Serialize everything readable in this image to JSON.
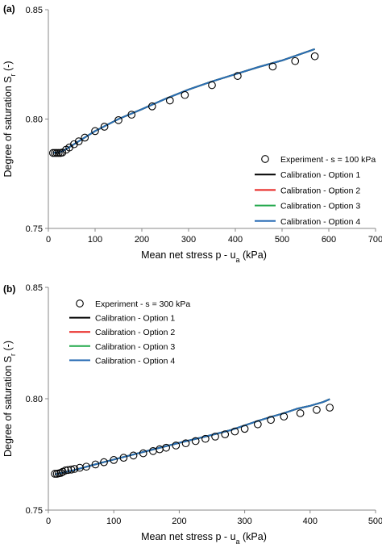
{
  "chart_data": [
    {
      "type": "line",
      "panel_label": "(a)",
      "xlabel": "Mean net stress p - u",
      "xlabel_sub": "a",
      "xlabel_tail": " (kPa)",
      "ylabel": "Degree of saturation S",
      "ylabel_sub": "r",
      "ylabel_tail": " (-)",
      "xlim": [
        0,
        700
      ],
      "ylim": [
        0.75,
        0.85
      ],
      "xticks": [
        "0",
        "100",
        "200",
        "300",
        "400",
        "500",
        "600",
        "700"
      ],
      "yticks": [
        "0.75",
        "0.80",
        "0.85"
      ],
      "grid": false,
      "legend_position": "right",
      "series": [
        {
          "name": "Experiment - s = 100 kPa",
          "kind": "markers",
          "color": "#000000",
          "x": [
            10,
            14,
            18,
            22,
            26,
            30,
            38,
            45,
            55,
            65,
            78,
            100,
            120,
            150,
            178,
            222,
            260,
            292,
            350,
            405,
            480,
            528,
            570
          ],
          "y": [
            0.7845,
            0.7845,
            0.7845,
            0.7845,
            0.7845,
            0.7847,
            0.786,
            0.787,
            0.7885,
            0.7898,
            0.7915,
            0.7945,
            0.7965,
            0.7995,
            0.802,
            0.8058,
            0.8085,
            0.811,
            0.8155,
            0.8197,
            0.824,
            0.8265,
            0.8287
          ]
        },
        {
          "name": "Calibration - Option 1",
          "kind": "line",
          "color": "#000000",
          "x": [
            10,
            30,
            60,
            100,
            150,
            200,
            250,
            300,
            350,
            400,
            450,
            500,
            570
          ],
          "y": [
            0.7845,
            0.7852,
            0.7892,
            0.7945,
            0.8,
            0.8045,
            0.8092,
            0.8135,
            0.8172,
            0.8205,
            0.8238,
            0.8268,
            0.832
          ]
        },
        {
          "name": "Calibration - Option 2",
          "kind": "line",
          "color": "#e8221f",
          "x": [
            10,
            30,
            60,
            100,
            150,
            200,
            250,
            300,
            350,
            400,
            450,
            500,
            570
          ],
          "y": [
            0.7845,
            0.7852,
            0.7892,
            0.7945,
            0.8,
            0.8045,
            0.8092,
            0.8135,
            0.8172,
            0.8205,
            0.8238,
            0.8268,
            0.832
          ]
        },
        {
          "name": "Calibration - Option 3",
          "kind": "line",
          "color": "#20a84a",
          "x": [
            10,
            30,
            60,
            100,
            150,
            200,
            250,
            300,
            350,
            400,
            450,
            500,
            570
          ],
          "y": [
            0.7845,
            0.7852,
            0.7892,
            0.7945,
            0.8,
            0.8045,
            0.8092,
            0.8135,
            0.8172,
            0.8205,
            0.8238,
            0.8268,
            0.832
          ]
        },
        {
          "name": "Calibration - Option 4",
          "kind": "line",
          "color": "#2a6db5",
          "x": [
            10,
            30,
            60,
            100,
            150,
            200,
            250,
            300,
            350,
            400,
            450,
            500,
            570
          ],
          "y": [
            0.7845,
            0.7852,
            0.7892,
            0.7945,
            0.8,
            0.8045,
            0.8092,
            0.8135,
            0.8172,
            0.8205,
            0.8238,
            0.8268,
            0.832
          ]
        }
      ]
    },
    {
      "type": "line",
      "panel_label": "(b)",
      "xlabel": "Mean net stress p - u",
      "xlabel_sub": "a",
      "xlabel_tail": " (kPa)",
      "ylabel": "Degree of saturation S",
      "ylabel_sub": "r",
      "ylabel_tail": " (-)",
      "xlim": [
        0,
        500
      ],
      "ylim": [
        0.75,
        0.85
      ],
      "xticks": [
        "0",
        "100",
        "200",
        "300",
        "400",
        "500"
      ],
      "yticks": [
        "0.75",
        "0.80",
        "0.85"
      ],
      "grid": false,
      "legend_position": "top-left",
      "series": [
        {
          "name": "Experiment - s = 300 kPa",
          "kind": "markers",
          "color": "#000000",
          "x": [
            10,
            13,
            16,
            19,
            22,
            26,
            30,
            35,
            40,
            48,
            58,
            72,
            85,
            100,
            115,
            130,
            145,
            160,
            170,
            180,
            195,
            210,
            225,
            240,
            255,
            270,
            285,
            300,
            320,
            340,
            360,
            385,
            410,
            430
          ],
          "y": [
            0.7663,
            0.7663,
            0.7665,
            0.7667,
            0.7672,
            0.7678,
            0.768,
            0.7682,
            0.7685,
            0.769,
            0.7695,
            0.7705,
            0.7715,
            0.7725,
            0.7735,
            0.7745,
            0.7755,
            0.7765,
            0.7773,
            0.778,
            0.779,
            0.78,
            0.781,
            0.782,
            0.783,
            0.784,
            0.7853,
            0.7865,
            0.7885,
            0.7905,
            0.792,
            0.7935,
            0.795,
            0.796
          ]
        },
        {
          "name": "Calibration - Option 1",
          "kind": "line",
          "color": "#000000",
          "x": [
            10,
            40,
            80,
            120,
            160,
            200,
            240,
            280,
            300,
            320,
            340,
            360,
            380,
            400,
            420,
            430
          ],
          "y": [
            0.766,
            0.768,
            0.7712,
            0.7742,
            0.7772,
            0.7802,
            0.783,
            0.786,
            0.788,
            0.79,
            0.7918,
            0.7935,
            0.7955,
            0.7968,
            0.7985,
            0.7998
          ]
        },
        {
          "name": "Calibration - Option 2",
          "kind": "line",
          "color": "#e8221f",
          "x": [
            10,
            40,
            80,
            120,
            160,
            200,
            240,
            280,
            300,
            320,
            340,
            360,
            380,
            400,
            420,
            430
          ],
          "y": [
            0.766,
            0.768,
            0.7712,
            0.7742,
            0.7772,
            0.7802,
            0.783,
            0.786,
            0.788,
            0.79,
            0.7918,
            0.7935,
            0.7955,
            0.7968,
            0.7985,
            0.7998
          ]
        },
        {
          "name": "Calibration - Option 3",
          "kind": "line",
          "color": "#20a84a",
          "x": [
            10,
            40,
            80,
            120,
            160,
            200,
            240,
            280,
            300,
            320,
            340,
            360,
            380,
            400,
            420,
            430
          ],
          "y": [
            0.766,
            0.768,
            0.7712,
            0.7742,
            0.7772,
            0.7802,
            0.783,
            0.786,
            0.788,
            0.79,
            0.7918,
            0.7935,
            0.7955,
            0.7968,
            0.7985,
            0.7998
          ]
        },
        {
          "name": "Calibration - Option 4",
          "kind": "line",
          "color": "#2a6db5",
          "x": [
            10,
            40,
            80,
            120,
            160,
            200,
            240,
            280,
            300,
            320,
            340,
            360,
            380,
            400,
            420,
            430
          ],
          "y": [
            0.766,
            0.768,
            0.7712,
            0.7742,
            0.7772,
            0.7802,
            0.783,
            0.786,
            0.788,
            0.79,
            0.7918,
            0.7935,
            0.7955,
            0.7968,
            0.7985,
            0.7998
          ]
        }
      ]
    }
  ]
}
